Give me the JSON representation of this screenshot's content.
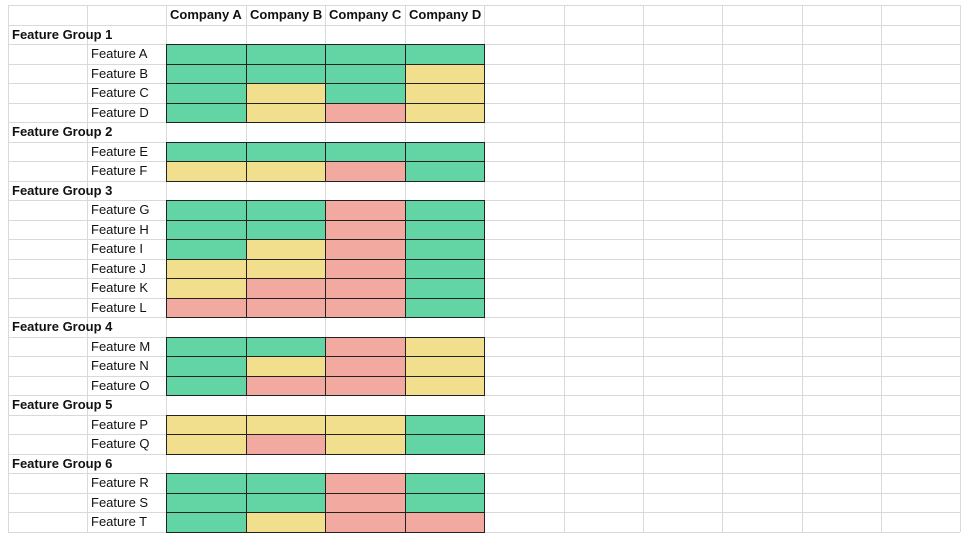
{
  "colors": {
    "green": "#63d4a3",
    "yellow": "#f2df8e",
    "red": "#f2a9a0"
  },
  "header": {
    "companies": [
      "Company A",
      "Company B",
      "Company C",
      "Company D"
    ]
  },
  "groups": [
    {
      "label": "Feature Group 1",
      "features": [
        {
          "label": "Feature A",
          "ratings": [
            "green",
            "green",
            "green",
            "green"
          ]
        },
        {
          "label": "Feature B",
          "ratings": [
            "green",
            "green",
            "green",
            "yellow"
          ]
        },
        {
          "label": "Feature C",
          "ratings": [
            "green",
            "yellow",
            "green",
            "yellow"
          ]
        },
        {
          "label": "Feature D",
          "ratings": [
            "green",
            "yellow",
            "red",
            "yellow"
          ]
        }
      ]
    },
    {
      "label": "Feature Group 2",
      "features": [
        {
          "label": "Feature E",
          "ratings": [
            "green",
            "green",
            "green",
            "green"
          ]
        },
        {
          "label": "Feature F",
          "ratings": [
            "yellow",
            "yellow",
            "red",
            "green"
          ]
        }
      ]
    },
    {
      "label": "Feature Group 3",
      "features": [
        {
          "label": "Feature G",
          "ratings": [
            "green",
            "green",
            "red",
            "green"
          ]
        },
        {
          "label": "Feature H",
          "ratings": [
            "green",
            "green",
            "red",
            "green"
          ]
        },
        {
          "label": "Feature I",
          "ratings": [
            "green",
            "yellow",
            "red",
            "green"
          ]
        },
        {
          "label": "Feature J",
          "ratings": [
            "yellow",
            "yellow",
            "red",
            "green"
          ]
        },
        {
          "label": "Feature K",
          "ratings": [
            "yellow",
            "red",
            "red",
            "green"
          ]
        },
        {
          "label": "Feature L",
          "ratings": [
            "red",
            "red",
            "red",
            "green"
          ]
        }
      ]
    },
    {
      "label": "Feature Group 4",
      "features": [
        {
          "label": "Feature M",
          "ratings": [
            "green",
            "green",
            "red",
            "yellow"
          ]
        },
        {
          "label": "Feature N",
          "ratings": [
            "green",
            "yellow",
            "red",
            "yellow"
          ]
        },
        {
          "label": "Feature O",
          "ratings": [
            "green",
            "red",
            "red",
            "yellow"
          ]
        }
      ]
    },
    {
      "label": "Feature Group 5",
      "features": [
        {
          "label": "Feature P",
          "ratings": [
            "yellow",
            "yellow",
            "yellow",
            "green"
          ]
        },
        {
          "label": "Feature Q",
          "ratings": [
            "yellow",
            "red",
            "yellow",
            "green"
          ]
        }
      ]
    },
    {
      "label": "Feature Group 6",
      "features": [
        {
          "label": "Feature R",
          "ratings": [
            "green",
            "green",
            "red",
            "green"
          ]
        },
        {
          "label": "Feature S",
          "ratings": [
            "green",
            "green",
            "red",
            "green"
          ]
        },
        {
          "label": "Feature T",
          "ratings": [
            "green",
            "yellow",
            "red",
            "red"
          ]
        }
      ]
    }
  ]
}
